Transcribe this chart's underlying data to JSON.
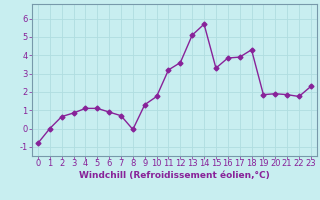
{
  "x": [
    0,
    1,
    2,
    3,
    4,
    5,
    6,
    7,
    8,
    9,
    10,
    11,
    12,
    13,
    14,
    15,
    16,
    17,
    18,
    19,
    20,
    21,
    22,
    23
  ],
  "y": [
    -0.8,
    0.0,
    0.65,
    0.85,
    1.1,
    1.1,
    0.9,
    0.7,
    -0.05,
    1.3,
    1.75,
    3.2,
    3.6,
    5.1,
    5.7,
    3.3,
    3.85,
    3.9,
    4.3,
    1.85,
    1.9,
    1.85,
    1.75,
    2.3
  ],
  "line_color": "#882299",
  "marker": "D",
  "markersize": 2.5,
  "linewidth": 1.0,
  "xlabel": "Windchill (Refroidissement éolien,°C)",
  "xlabel_fontsize": 6.5,
  "ylim": [
    -1.5,
    6.8
  ],
  "yticks": [
    -1,
    0,
    1,
    2,
    3,
    4,
    5,
    6
  ],
  "xlim": [
    -0.5,
    23.5
  ],
  "xticks": [
    0,
    1,
    2,
    3,
    4,
    5,
    6,
    7,
    8,
    9,
    10,
    11,
    12,
    13,
    14,
    15,
    16,
    17,
    18,
    19,
    20,
    21,
    22,
    23
  ],
  "bg_color": "#c8eef0",
  "grid_color": "#b0dde0",
  "tick_color": "#882299",
  "tick_labelsize": 6.0,
  "border_color": "#7799aa"
}
